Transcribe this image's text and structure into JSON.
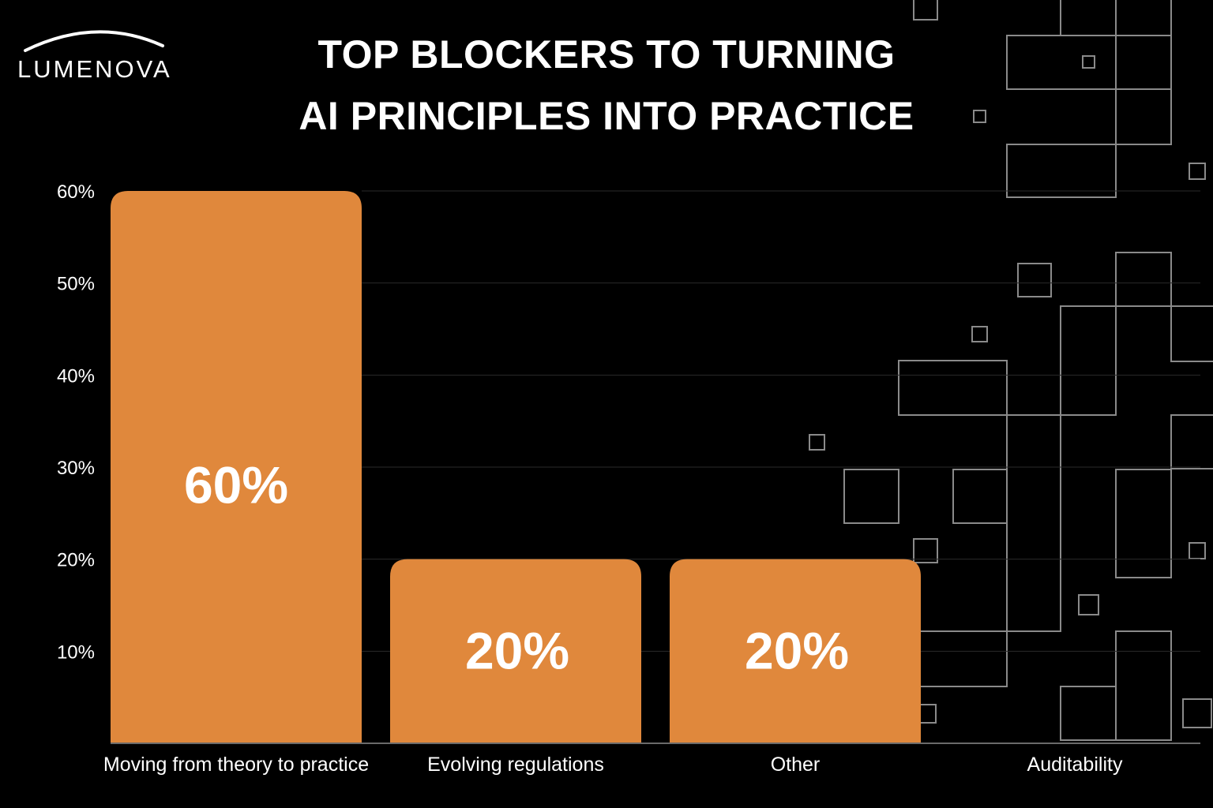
{
  "brand": {
    "name": "LUMENOVA"
  },
  "chart_data": {
    "type": "bar",
    "title": [
      "TOP BLOCKERS TO TURNING",
      "AI PRINCIPLES INTO PRACTICE"
    ],
    "categories": [
      "Moving from theory to practice",
      "Evolving regulations",
      "Other",
      "Auditability"
    ],
    "values": [
      60,
      20,
      20,
      null
    ],
    "data_labels": [
      "60%",
      "20%",
      "20%",
      ""
    ],
    "y_ticks": [
      "10%",
      "20%",
      "30%",
      "40%",
      "50%",
      "60%"
    ],
    "y_tick_values": [
      10,
      20,
      30,
      40,
      50,
      60
    ],
    "ylim": [
      0,
      60
    ],
    "xlabel": "",
    "ylabel": "",
    "grid": true,
    "legend": "none",
    "colors": {
      "bar": "#E0883C",
      "background": "#000000",
      "text": "#FFFFFF",
      "grid": "#2a2a2a",
      "decoration": "#8a8a8a"
    }
  }
}
